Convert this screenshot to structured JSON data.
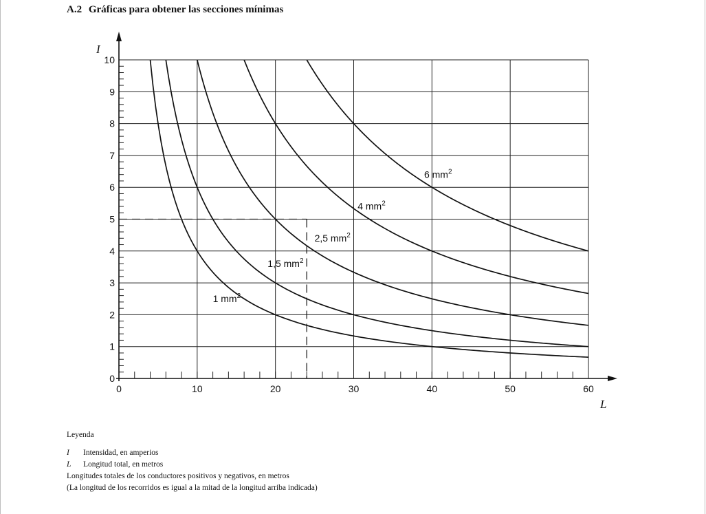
{
  "heading": {
    "number": "A.2",
    "text": "Gráficas para obtener las secciones mínimas"
  },
  "chart_data": {
    "type": "line",
    "title": "",
    "xlabel": "L",
    "ylabel": "I",
    "xlim": [
      0,
      60
    ],
    "ylim": [
      0,
      10
    ],
    "xticks": [
      0,
      10,
      20,
      30,
      40,
      50,
      60
    ],
    "yticks": [
      0,
      1,
      2,
      3,
      4,
      5,
      6,
      7,
      8,
      9,
      10
    ],
    "grid": true,
    "series": [
      {
        "name": "1 mm",
        "sup": "2",
        "k": 40,
        "label_x": 12,
        "label_y": 2.4
      },
      {
        "name": "1,5 mm",
        "sup": "2",
        "k": 60,
        "label_x": 19,
        "label_y": 3.5
      },
      {
        "name": "2,5 mm",
        "sup": "2",
        "k": 100,
        "label_x": 25,
        "label_y": 4.3
      },
      {
        "name": "4 mm",
        "sup": "2",
        "k": 160,
        "label_x": 30.5,
        "label_y": 5.3
      },
      {
        "name": "6 mm",
        "sup": "2",
        "k": 240,
        "label_x": 39,
        "label_y": 6.3
      }
    ],
    "reference_lines": {
      "x": 24,
      "y": 5
    }
  },
  "legend": {
    "title": "Leyenda",
    "items": [
      {
        "symbol": "I",
        "text": "Intensidad, en amperios"
      },
      {
        "symbol": "L",
        "text": "Longitud total, en metros"
      }
    ],
    "notes": [
      "Longitudes totales de los conductores positivos y negativos, en metros",
      "(La longitud de los recorridos es igual a la mitad de la longitud arriba indicada)"
    ]
  }
}
